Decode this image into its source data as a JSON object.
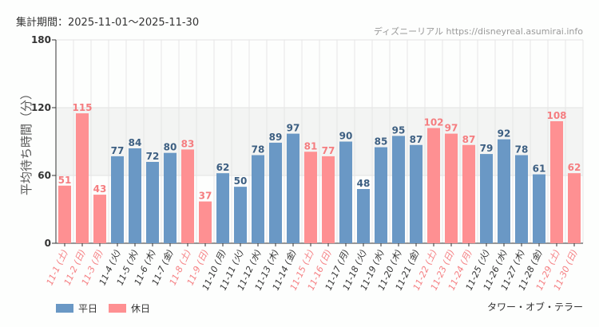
{
  "header": {
    "period": "集計期間：2025-11-01～2025-11-30",
    "credit": "ディズニーリアル https://disneyreal.asumirai.info"
  },
  "footer": {
    "attraction": "タワー・オブ・テラー"
  },
  "colors": {
    "weekday": "#6a98c5",
    "holiday": "#fe9092",
    "weekday_text": "#3d5f82",
    "holiday_text": "#f57d80"
  },
  "chart_data": {
    "type": "bar",
    "ylabel": "平均待ち時間（分）",
    "ylim": [
      0,
      180
    ],
    "yticks": [
      0,
      60,
      120,
      180
    ],
    "grid": true,
    "legend_position": "bottom-left",
    "legend": [
      {
        "name": "平日",
        "key": "weekday"
      },
      {
        "name": "休日",
        "key": "holiday"
      }
    ],
    "categories": [
      "11-1 (土)",
      "11-2 (日)",
      "11-3 (月)",
      "11-4 (火)",
      "11-5 (水)",
      "11-6 (木)",
      "11-7 (金)",
      "11-8 (土)",
      "11-9 (日)",
      "11-10 (月)",
      "11-11 (火)",
      "11-12 (水)",
      "11-13 (木)",
      "11-14 (金)",
      "11-15 (土)",
      "11-16 (日)",
      "11-17 (月)",
      "11-18 (火)",
      "11-19 (水)",
      "11-20 (木)",
      "11-21 (金)",
      "11-22 (土)",
      "11-23 (日)",
      "11-24 (月)",
      "11-25 (火)",
      "11-26 (水)",
      "11-27 (木)",
      "11-28 (金)",
      "11-29 (土)",
      "11-30 (日)"
    ],
    "values": [
      51,
      115,
      43,
      77,
      84,
      72,
      80,
      83,
      37,
      62,
      50,
      78,
      89,
      97,
      81,
      77,
      90,
      48,
      85,
      95,
      87,
      102,
      97,
      87,
      79,
      92,
      78,
      61,
      108,
      62
    ],
    "day_type": [
      "holiday",
      "holiday",
      "holiday",
      "weekday",
      "weekday",
      "weekday",
      "weekday",
      "holiday",
      "holiday",
      "weekday",
      "weekday",
      "weekday",
      "weekday",
      "weekday",
      "holiday",
      "holiday",
      "weekday",
      "weekday",
      "weekday",
      "weekday",
      "weekday",
      "holiday",
      "holiday",
      "holiday",
      "weekday",
      "weekday",
      "weekday",
      "weekday",
      "holiday",
      "holiday"
    ]
  }
}
